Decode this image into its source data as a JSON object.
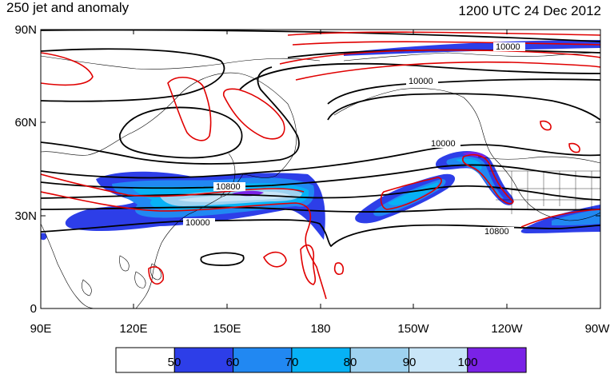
{
  "header": {
    "title": "250 jet and anomaly",
    "valid_time": "1200 UTC 24 Dec 2012"
  },
  "map": {
    "projection": "cylindrical-equidistant",
    "lat_axis": {
      "ticks": [
        "90N",
        "60N",
        "30N",
        "0"
      ]
    },
    "lon_axis": {
      "ticks": [
        "90E",
        "120E",
        "150E",
        "180",
        "150W",
        "120W",
        "90W"
      ]
    },
    "height_contour_labels": [
      "10000",
      "10000",
      "10000",
      "10800",
      "10000",
      "10800"
    ],
    "colors": {
      "height_contours": "#000000",
      "anomaly_contours": "#e00000",
      "coastlines": "#000000"
    }
  },
  "colorbar": {
    "labels": [
      "50",
      "60",
      "70",
      "80",
      "90",
      "100"
    ],
    "bins": [
      {
        "color": "#ffffff"
      },
      {
        "color": "#2d3ee8"
      },
      {
        "color": "#2188f2"
      },
      {
        "color": "#07b2f5"
      },
      {
        "color": "#9ed2f0"
      },
      {
        "color": "#c9e6f8"
      },
      {
        "color": "#7a22e6"
      }
    ]
  }
}
